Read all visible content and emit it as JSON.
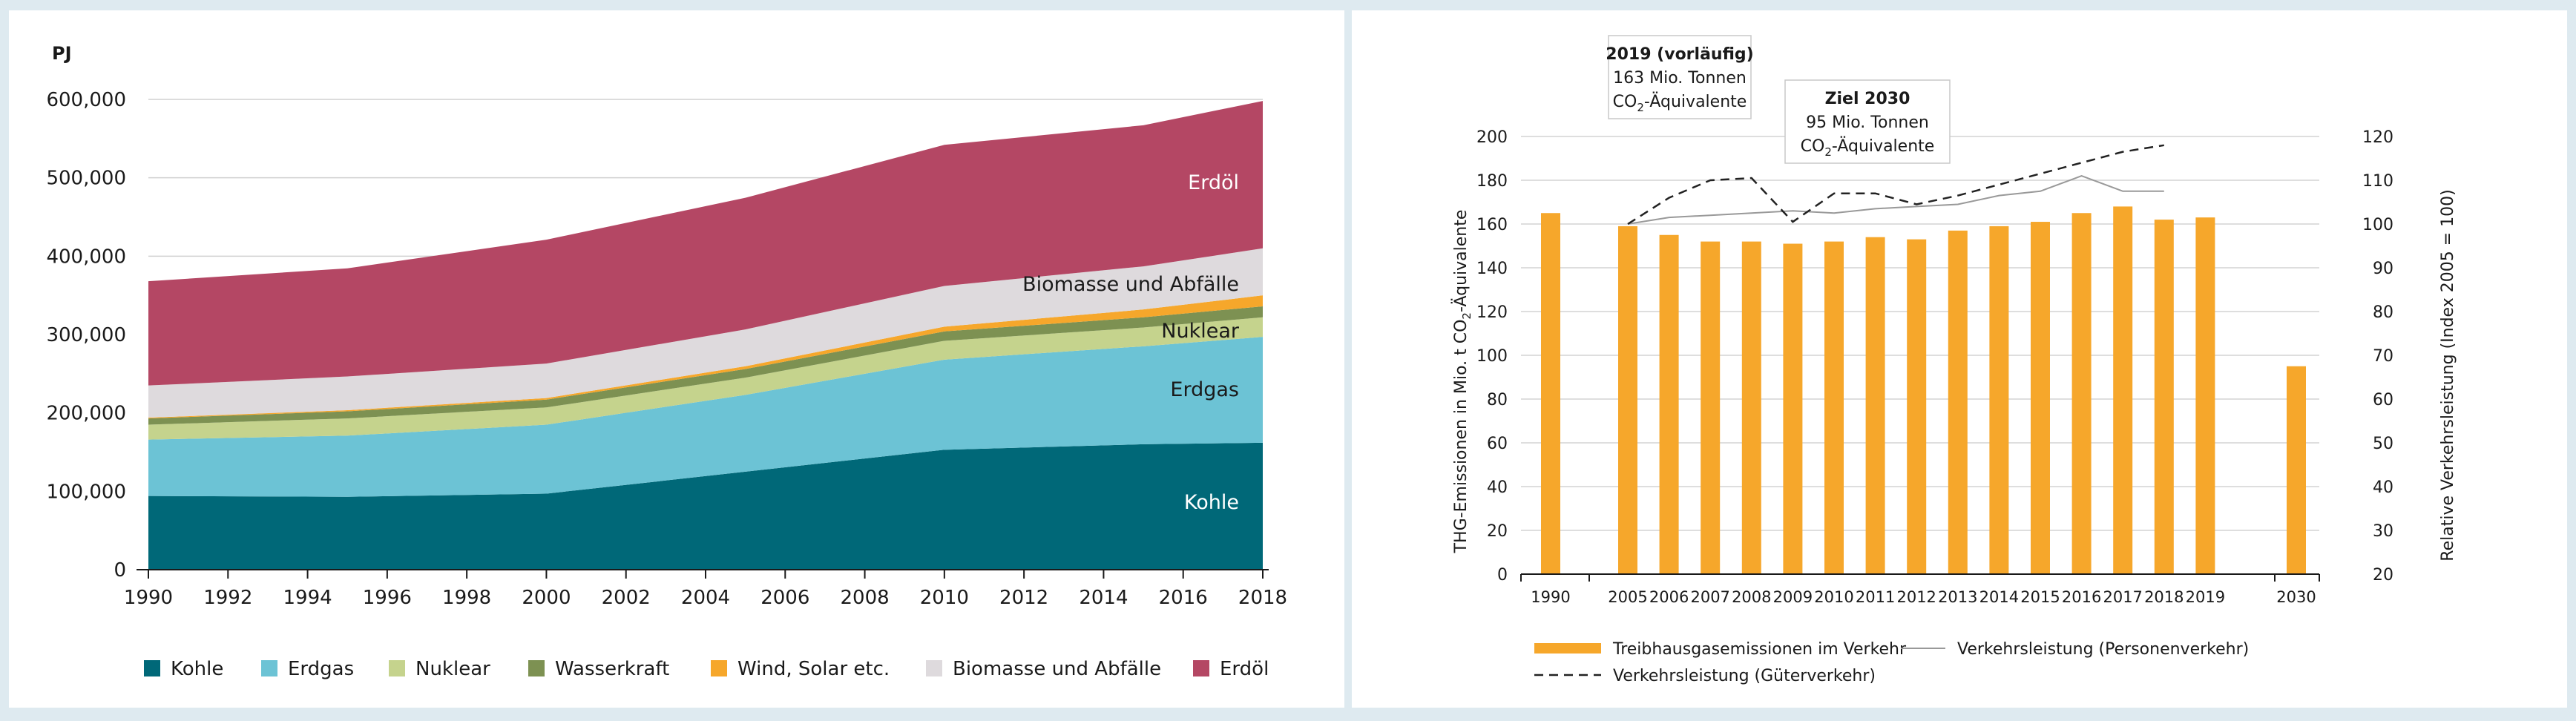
{
  "left_chart": {
    "unit_label": "PJ",
    "chart_data": {
      "type": "area",
      "stacked": true,
      "title": "",
      "ylabel": "PJ",
      "xlabel": "",
      "x": [
        1990,
        1995,
        2000,
        2005,
        2010,
        2015,
        2018
      ],
      "xlim": [
        1990,
        2018
      ],
      "ylim": [
        0,
        600000
      ],
      "x_ticks": [
        "1990",
        "1992",
        "1994",
        "1996",
        "1998",
        "2000",
        "2002",
        "2004",
        "2006",
        "2008",
        "2010",
        "2012",
        "2014",
        "2016",
        "2018"
      ],
      "y_ticks": [
        "0",
        "100,000",
        "200,000",
        "300,000",
        "400,000",
        "500,000",
        "600,000"
      ],
      "series": [
        {
          "name": "Kohle",
          "color": "#006878",
          "values": [
            94000,
            93000,
            97000,
            125000,
            153000,
            160000,
            162000
          ]
        },
        {
          "name": "Erdgas",
          "color": "#6cc3d5",
          "values": [
            72000,
            78000,
            88000,
            98000,
            115000,
            125000,
            135000
          ]
        },
        {
          "name": "Nuklear",
          "color": "#c5d38d",
          "values": [
            19000,
            22000,
            22000,
            22000,
            24000,
            24000,
            25000
          ]
        },
        {
          "name": "Wasserkraft",
          "color": "#7d9152",
          "values": [
            8000,
            9000,
            10000,
            11000,
            12000,
            13000,
            14000
          ]
        },
        {
          "name": "Wind, Solar etc.",
          "color": "#f6a72b",
          "values": [
            1000,
            1500,
            2000,
            3500,
            6000,
            10000,
            14000
          ]
        },
        {
          "name": "Biomasse und Abfälle",
          "color": "#dedadd",
          "values": [
            41000,
            43000,
            44000,
            47000,
            52000,
            55000,
            60000
          ]
        },
        {
          "name": "Erdöl",
          "color": "#b44764",
          "values": [
            133000,
            138000,
            158000,
            168000,
            180000,
            180000,
            188000
          ]
        }
      ],
      "inline_labels": {
        "kohle": "Kohle",
        "erdgas": "Erdgas",
        "nuklear": "Nuklear",
        "biomasse": "Biomasse und Abfälle",
        "erdoel": "Erdöl"
      },
      "legend": [
        "Kohle",
        "Erdgas",
        "Nuklear",
        "Wasserkraft",
        "Wind, Solar etc.",
        "Biomasse und Abfälle",
        "Erdöl"
      ],
      "legend_position": "bottom"
    }
  },
  "right_chart": {
    "chart_data": {
      "type": "bar",
      "categories": [
        "1990",
        "2005",
        "2006",
        "2007",
        "2008",
        "2009",
        "2010",
        "2011",
        "2012",
        "2013",
        "2014",
        "2015",
        "2016",
        "2017",
        "2018",
        "2019",
        "2030"
      ],
      "ylabel": "THG-Emissionen in Mio. t CO2-Äquivalente",
      "ylabel_parts": {
        "main": "THG-Emissionen in Mio.  t CO",
        "sub": "2",
        "tail": "-Äquivalente"
      },
      "y2label": "Relative  Verkehrsleistung  (Index 2005 = 100)",
      "ylim": [
        0,
        200
      ],
      "y2lim": [
        20,
        120
      ],
      "y_ticks": [
        "0",
        "20",
        "40",
        "60",
        "80",
        "100",
        "120",
        "140",
        "160",
        "180",
        "200"
      ],
      "y2_ticks": [
        "20",
        "30",
        "40",
        "50",
        "60",
        "70",
        "80",
        "90",
        "100",
        "110",
        "120"
      ],
      "bar_color": "#f6a72b",
      "series": [
        {
          "name": "Treibhausgasemissionen im Verkehr",
          "type": "bar",
          "axis": "left",
          "values": [
            165,
            159,
            155,
            152,
            152,
            151,
            152,
            154,
            153,
            157,
            159,
            161,
            165,
            168,
            162,
            163,
            95
          ]
        },
        {
          "name": "Verkehrsleistung (Personenverkehr)",
          "type": "line",
          "axis": "right",
          "style": "solid",
          "color": "#999999",
          "x": [
            "2005",
            "2006",
            "2007",
            "2008",
            "2009",
            "2010",
            "2011",
            "2012",
            "2013",
            "2014",
            "2015",
            "2016",
            "2017",
            "2018"
          ],
          "values": [
            100,
            101.5,
            102,
            102.5,
            103,
            102.5,
            103.5,
            104,
            104.5,
            106.5,
            107.5,
            111,
            107.5,
            107.5
          ]
        },
        {
          "name": "Verkehrsleistung (Güterverkehr)",
          "type": "line",
          "axis": "right",
          "style": "dashed",
          "color": "#222222",
          "x": [
            "2005",
            "2006",
            "2007",
            "2008",
            "2009",
            "2010",
            "2011",
            "2012",
            "2013",
            "2014",
            "2015",
            "2016",
            "2017",
            "2018"
          ],
          "values": [
            100,
            106,
            110,
            110.5,
            100.5,
            107,
            107,
            104.5,
            106.5,
            109,
            111.5,
            114,
            116.5,
            118
          ]
        }
      ],
      "annotations": [
        {
          "title": "2019 (vorläufig)",
          "line1": "163 Mio. Tonnen",
          "line2_main": "CO",
          "line2_sub": "2",
          "line2_tail": "-Äquivalente"
        },
        {
          "title": "Ziel 2030",
          "line1": "95 Mio. Tonnen",
          "line2_main": "CO",
          "line2_sub": "2",
          "line2_tail": "-Äquivalente"
        }
      ],
      "legend": [
        "Treibhausgasemissionen im Verkehr",
        "Verkehrsleistung (Personenverkehr)",
        "Verkehrsleistung (Güterverkehr)"
      ],
      "legend_position": "bottom"
    }
  }
}
